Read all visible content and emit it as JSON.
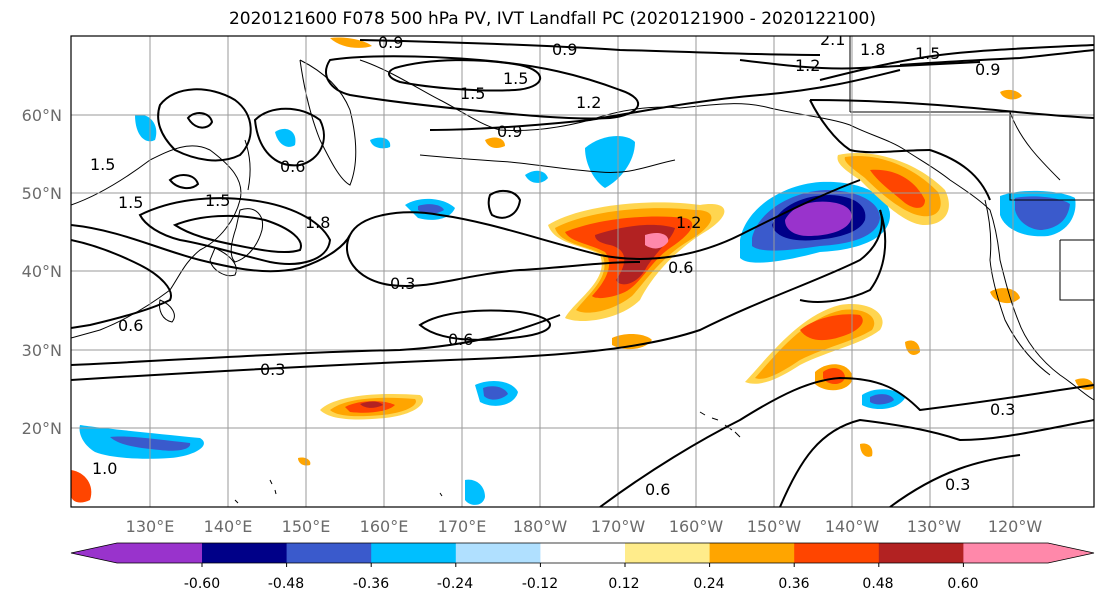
{
  "title": "2020121600 F078 500 hPa PV, IVT Landfall PC (2020121900 - 2020122100)",
  "lon_ticks": [
    "130°E",
    "140°E",
    "150°E",
    "160°E",
    "170°E",
    "180°W",
    "170°W",
    "160°W",
    "150°W",
    "140°W",
    "130°W",
    "120°W"
  ],
  "lat_ticks": [
    "60°N",
    "50°N",
    "40°N",
    "30°N",
    "20°N"
  ],
  "contour_labels": [
    "0.9",
    "0.9",
    "2.1",
    "1.8",
    "1.5",
    "1.2",
    "0.9",
    "1.5",
    "1.2",
    "0.9",
    "1.5",
    "1.5",
    "1.5",
    "0.6",
    "1.5",
    "1.8",
    "0.6",
    "0.3",
    "0.6",
    "0.3",
    "1.2",
    "0.6",
    "0.3",
    "0.6",
    "0.3",
    "1.0"
  ],
  "colorbar": {
    "colors": [
      "#9933cc",
      "#000088",
      "#3a5acc",
      "#00bfff",
      "#b0e0ff",
      "#ffffff",
      "#ffec8b",
      "#ffa500",
      "#ff4500",
      "#b22222",
      "#ff88aa"
    ],
    "tick_labels": [
      "-0.60",
      "-0.48",
      "-0.36",
      "-0.24",
      "-0.12",
      "0.12",
      "0.24",
      "0.36",
      "0.48",
      "0.60"
    ]
  }
}
